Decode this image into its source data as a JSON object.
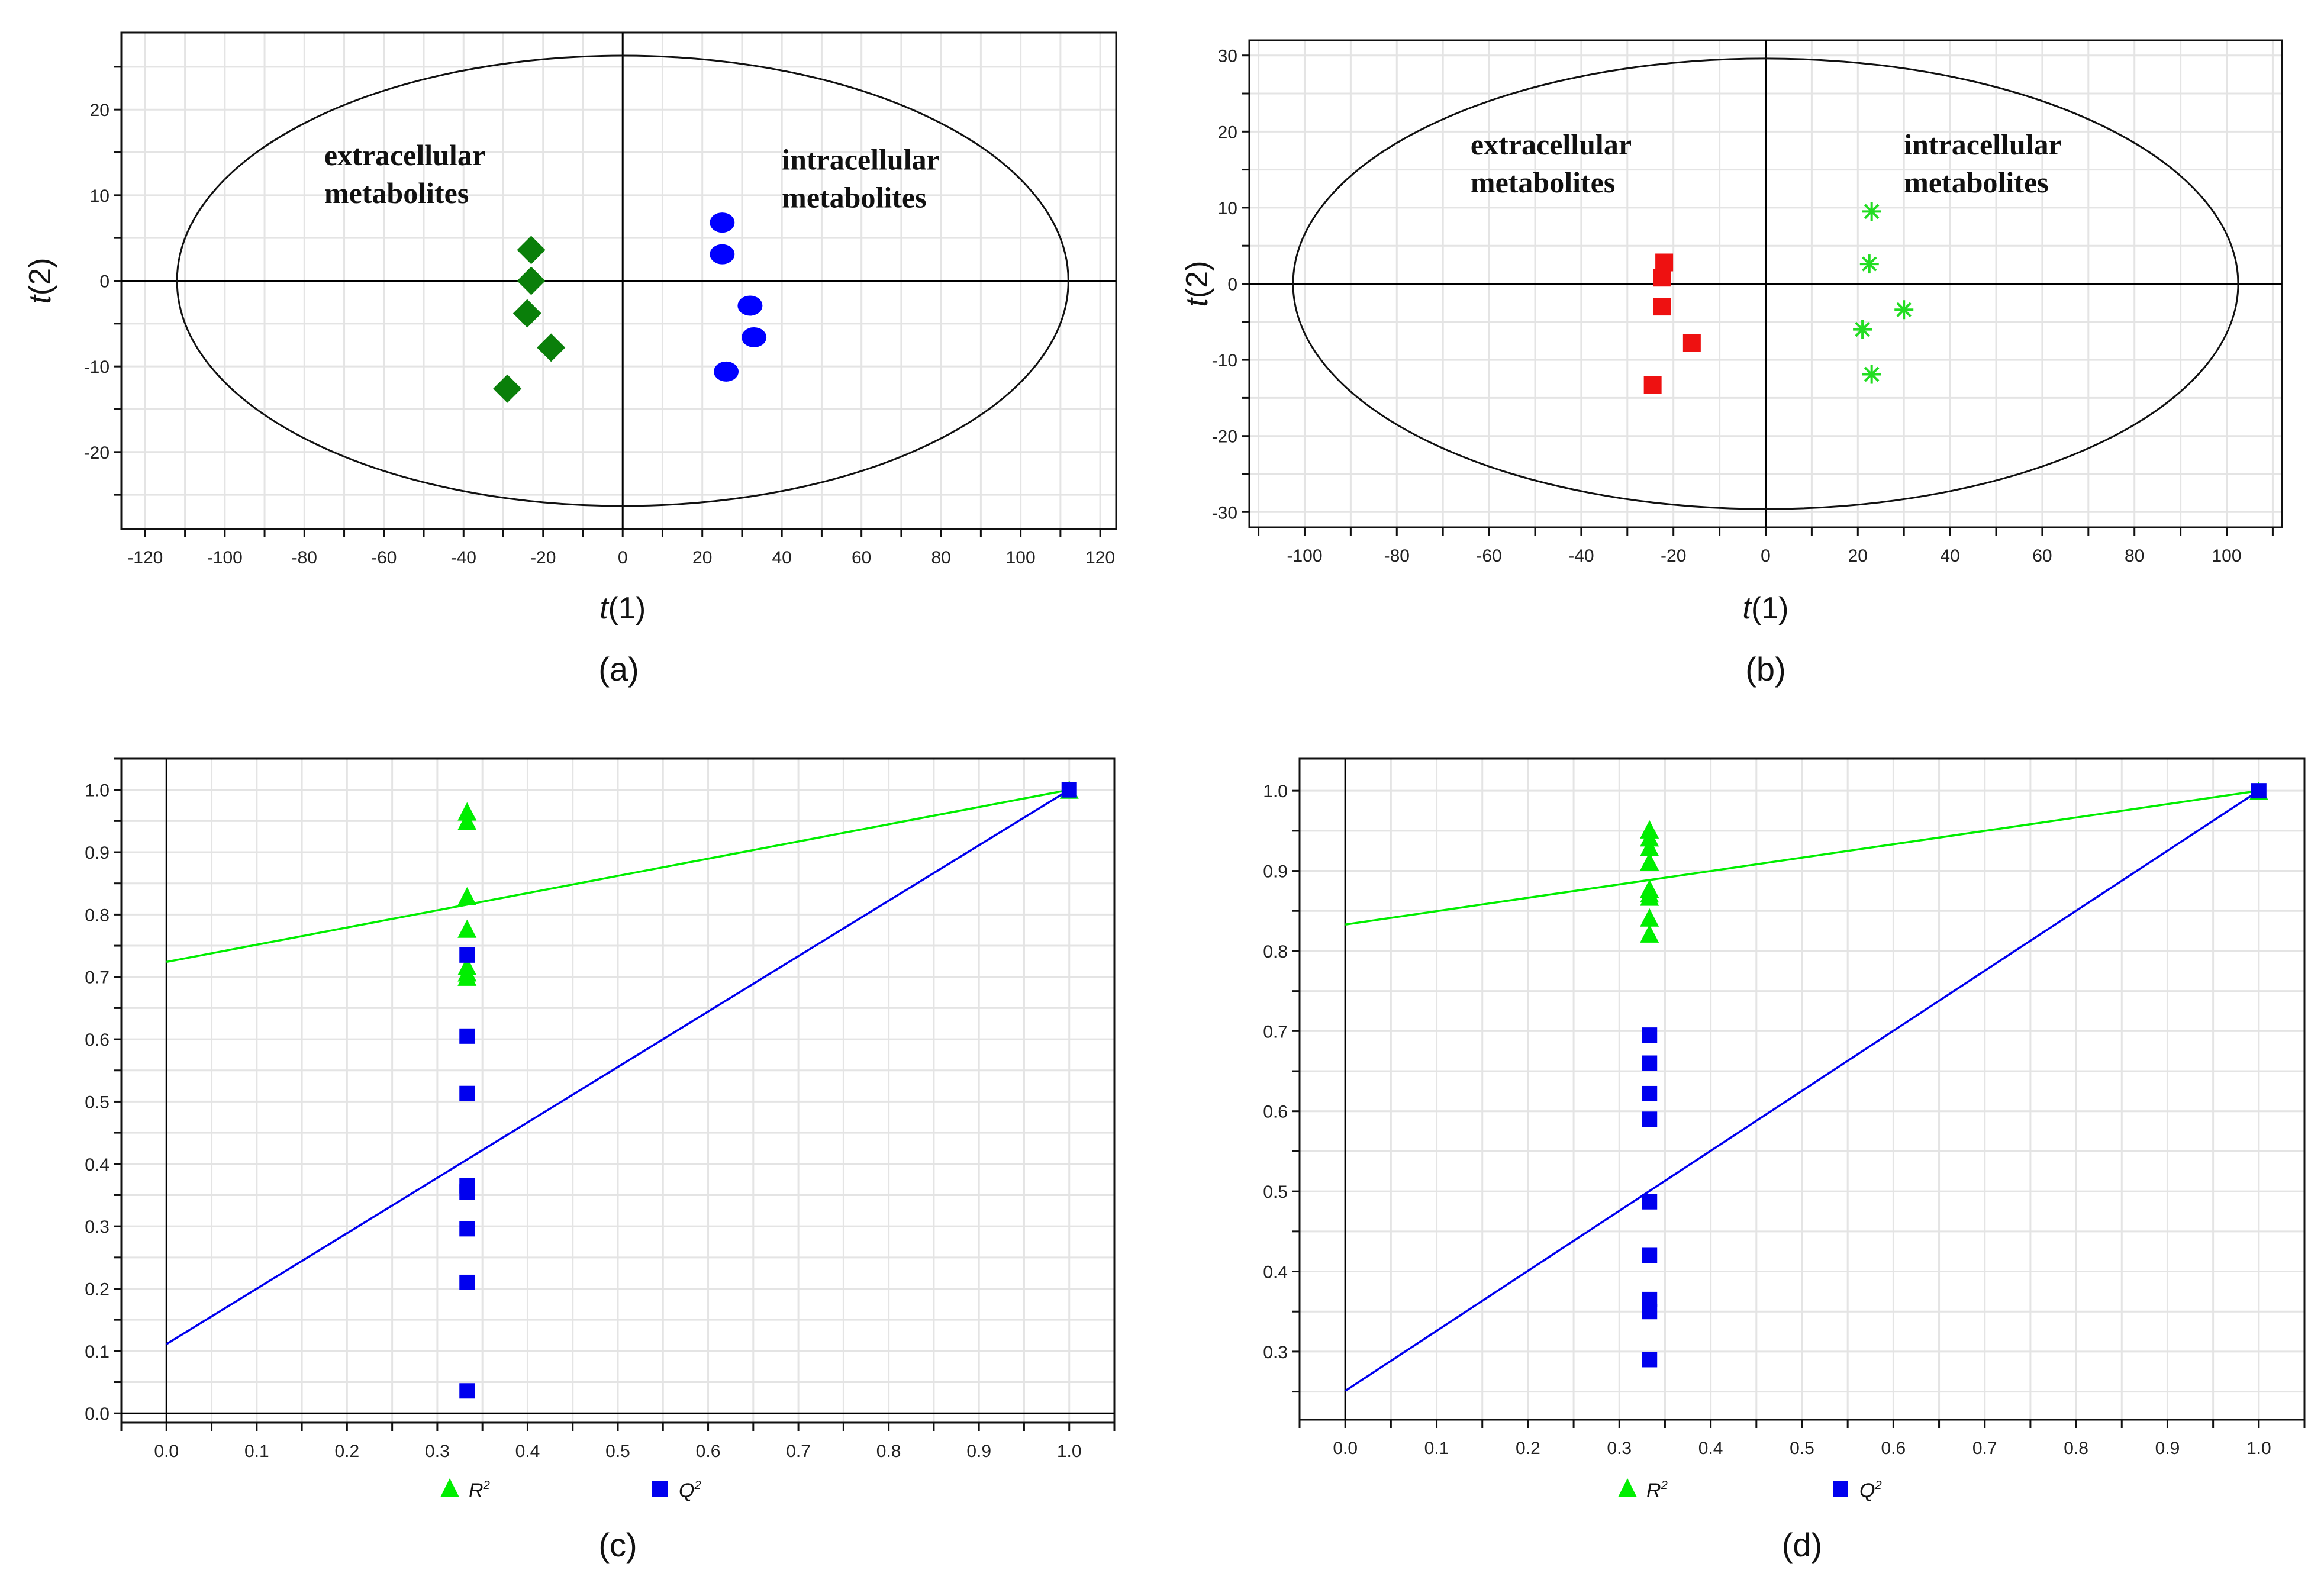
{
  "chart_data": [
    {
      "id": "a",
      "type": "scatter",
      "panel_label": "(a)",
      "title": "",
      "xlabel": "t(1)",
      "ylabel": "t(2)",
      "xlim": [
        -126,
        124
      ],
      "ylim": [
        -29,
        29
      ],
      "xticks": [
        -120,
        -100,
        -80,
        -60,
        -40,
        -20,
        0,
        20,
        40,
        60,
        80,
        100,
        120
      ],
      "yticks": [
        -20,
        -10,
        0,
        10,
        20
      ],
      "grid": true,
      "ellipse": {
        "rx": 112,
        "ry": 26.3
      },
      "annotations": [
        {
          "text_lines": [
            "extracellular",
            "metabolites"
          ],
          "x": -75,
          "y": 13.5
        },
        {
          "text_lines": [
            "intracellular",
            "metabolites"
          ],
          "x": 40,
          "y": 13
        }
      ],
      "series": [
        {
          "name": "extracellular metabolites",
          "marker": "diamond",
          "color": "#0a7f0a",
          "points": [
            [
              -23,
              3.6
            ],
            [
              -23,
              0
            ],
            [
              -24,
              -3.8
            ],
            [
              -18,
              -7.8
            ],
            [
              -29,
              -12.6
            ]
          ]
        },
        {
          "name": "intracellular metabolites",
          "marker": "circle",
          "color": "#0000ff",
          "points": [
            [
              25,
              6.8
            ],
            [
              25,
              3.1
            ],
            [
              32,
              -2.9
            ],
            [
              33,
              -6.6
            ],
            [
              26,
              -10.6
            ]
          ]
        }
      ]
    },
    {
      "id": "b",
      "type": "scatter",
      "panel_label": "(b)",
      "title": "",
      "xlabel": "t(1)",
      "ylabel": "t(2)",
      "xlim": [
        -112,
        112
      ],
      "ylim": [
        -32,
        32
      ],
      "xticks": [
        -100,
        -80,
        -60,
        -40,
        -20,
        0,
        20,
        40,
        60,
        80,
        100
      ],
      "yticks": [
        -30,
        -20,
        -10,
        0,
        10,
        20,
        30
      ],
      "grid": true,
      "ellipse": {
        "rx": 102.5,
        "ry": 29.6
      },
      "annotations": [
        {
          "text_lines": [
            "extracellular",
            "metabolites"
          ],
          "x": -64,
          "y": 17
        },
        {
          "text_lines": [
            "intracellular",
            "metabolites"
          ],
          "x": 30,
          "y": 17
        }
      ],
      "series": [
        {
          "name": "extracellular metabolites",
          "marker": "square",
          "color": "#ee1111",
          "points": [
            [
              -22,
              2.8
            ],
            [
              -22.5,
              0.8
            ],
            [
              -22.5,
              -3
            ],
            [
              -16,
              -7.8
            ],
            [
              -24.5,
              -13.3
            ]
          ]
        },
        {
          "name": "intracellular metabolites",
          "marker": "asterisk",
          "color": "#22dd22",
          "points": [
            [
              23,
              9.5
            ],
            [
              22.5,
              2.6
            ],
            [
              30,
              -3.4
            ],
            [
              21,
              -6
            ],
            [
              23,
              -11.9
            ]
          ]
        }
      ]
    },
    {
      "id": "c",
      "type": "scatter",
      "panel_label": "(c)",
      "title": "",
      "xlabel": "",
      "ylabel": "",
      "xlim": [
        -0.05,
        1.05
      ],
      "ylim": [
        -0.015,
        1.05
      ],
      "xticks": [
        0.0,
        0.1,
        0.2,
        0.3,
        0.4,
        0.5,
        0.6,
        0.7,
        0.8,
        0.9,
        1.0
      ],
      "yticks": [
        0.0,
        0.1,
        0.2,
        0.3,
        0.4,
        0.5,
        0.6,
        0.7,
        0.8,
        0.9,
        1.0
      ],
      "grid": true,
      "legend": {
        "placement": "bottom",
        "entries": [
          {
            "label": "R2",
            "marker": "triangle",
            "color": "#00ee00"
          },
          {
            "label": "Q2",
            "marker": "square",
            "color": "#0000ee"
          }
        ]
      },
      "series": [
        {
          "name": "R2",
          "marker": "triangle",
          "color": "#00ee00",
          "points": [
            [
              0.333,
              0.963
            ],
            [
              0.333,
              0.948
            ],
            [
              0.333,
              0.827
            ],
            [
              0.333,
              0.775
            ],
            [
              0.333,
              0.715
            ],
            [
              0.333,
              0.705
            ],
            [
              0.333,
              0.698
            ],
            [
              1.0,
              0.998
            ]
          ],
          "regression_line": {
            "intercept": 0.724,
            "end": [
              1.0,
              1.0
            ]
          }
        },
        {
          "name": "Q2",
          "marker": "square",
          "color": "#0000ee",
          "points": [
            [
              0.333,
              0.735
            ],
            [
              0.333,
              0.605
            ],
            [
              0.333,
              0.513
            ],
            [
              0.333,
              0.365
            ],
            [
              0.333,
              0.355
            ],
            [
              0.333,
              0.296
            ],
            [
              0.333,
              0.21
            ],
            [
              0.333,
              0.036
            ],
            [
              1.0,
              1.0
            ]
          ],
          "regression_line": {
            "intercept": 0.111,
            "end": [
              1.0,
              1.0
            ]
          }
        }
      ]
    },
    {
      "id": "d",
      "type": "scatter",
      "panel_label": "(d)",
      "title": "",
      "xlabel": "",
      "ylabel": "",
      "xlim": [
        -0.05,
        1.05
      ],
      "ylim": [
        0.215,
        1.04
      ],
      "xticks": [
        0.0,
        0.1,
        0.2,
        0.3,
        0.4,
        0.5,
        0.6,
        0.7,
        0.8,
        0.9,
        1.0
      ],
      "yticks": [
        0.3,
        0.4,
        0.5,
        0.6,
        0.7,
        0.8,
        0.9,
        1.0
      ],
      "grid": true,
      "legend": {
        "placement": "bottom",
        "entries": [
          {
            "label": "R2",
            "marker": "triangle",
            "color": "#00ee00"
          },
          {
            "label": "Q2",
            "marker": "square",
            "color": "#0000ee"
          }
        ]
      },
      "series": [
        {
          "name": "R2",
          "marker": "triangle",
          "color": "#00ee00",
          "points": [
            [
              0.333,
              0.95
            ],
            [
              0.333,
              0.94
            ],
            [
              0.333,
              0.928
            ],
            [
              0.333,
              0.91
            ],
            [
              0.333,
              0.876
            ],
            [
              0.333,
              0.87
            ],
            [
              0.333,
              0.866
            ],
            [
              0.333,
              0.84
            ],
            [
              0.333,
              0.82
            ],
            [
              1.0,
              0.998
            ]
          ],
          "regression_line": {
            "intercept": 0.833,
            "end": [
              1.0,
              1.0
            ]
          }
        },
        {
          "name": "Q2",
          "marker": "square",
          "color": "#0000ee",
          "points": [
            [
              0.333,
              0.695
            ],
            [
              0.333,
              0.66
            ],
            [
              0.333,
              0.622
            ],
            [
              0.333,
              0.59
            ],
            [
              0.333,
              0.487
            ],
            [
              0.333,
              0.42
            ],
            [
              0.333,
              0.365
            ],
            [
              0.333,
              0.35
            ],
            [
              0.333,
              0.29
            ],
            [
              1.0,
              1.0
            ]
          ],
          "regression_line": {
            "intercept": 0.251,
            "end": [
              1.0,
              1.0
            ]
          }
        }
      ]
    }
  ]
}
